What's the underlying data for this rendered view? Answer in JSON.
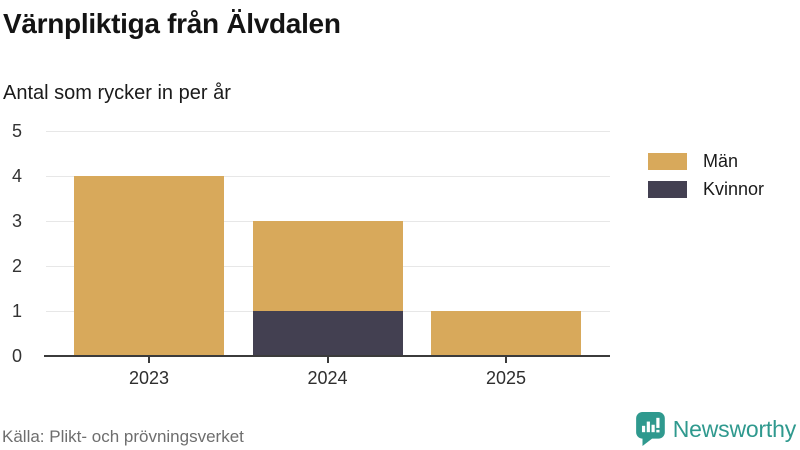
{
  "header": {
    "title": "Värnpliktiga från Älvdalen",
    "subtitle": "Antal som rycker in per år"
  },
  "chart_data": {
    "type": "bar",
    "stacked": true,
    "categories": [
      "2023",
      "2024",
      "2025"
    ],
    "series": [
      {
        "name": "Män",
        "color": "#d8a95b",
        "values": [
          4,
          2,
          1
        ]
      },
      {
        "name": "Kvinnor",
        "color": "#434051",
        "values": [
          0,
          1,
          0
        ]
      }
    ],
    "stack_order_bottom_to_top": [
      "Kvinnor",
      "Män"
    ],
    "stack_totals": [
      4,
      3,
      1
    ],
    "title": "Värnpliktiga från Älvdalen",
    "subtitle": "Antal som rycker in per år",
    "xlabel": "",
    "ylabel": "",
    "ylim": [
      0,
      5
    ],
    "yticks": [
      0,
      1,
      2,
      3,
      4,
      5
    ],
    "grid": true,
    "legend_position": "right"
  },
  "legend": {
    "items": [
      {
        "label": "Män",
        "color": "#d8a95b"
      },
      {
        "label": "Kvinnor",
        "color": "#434051"
      }
    ]
  },
  "footer": {
    "source": "Källa: Plikt- och prövningsverket",
    "brand": "Newsworthy"
  },
  "colors": {
    "men": "#d8a95b",
    "women": "#434051",
    "gridline": "#e7e7e7",
    "axis": "#3b3b3b",
    "tick_label": "#333333",
    "source_text": "#6e6e6e",
    "brand_teal": "#2f998e",
    "background": "#ffffff"
  }
}
